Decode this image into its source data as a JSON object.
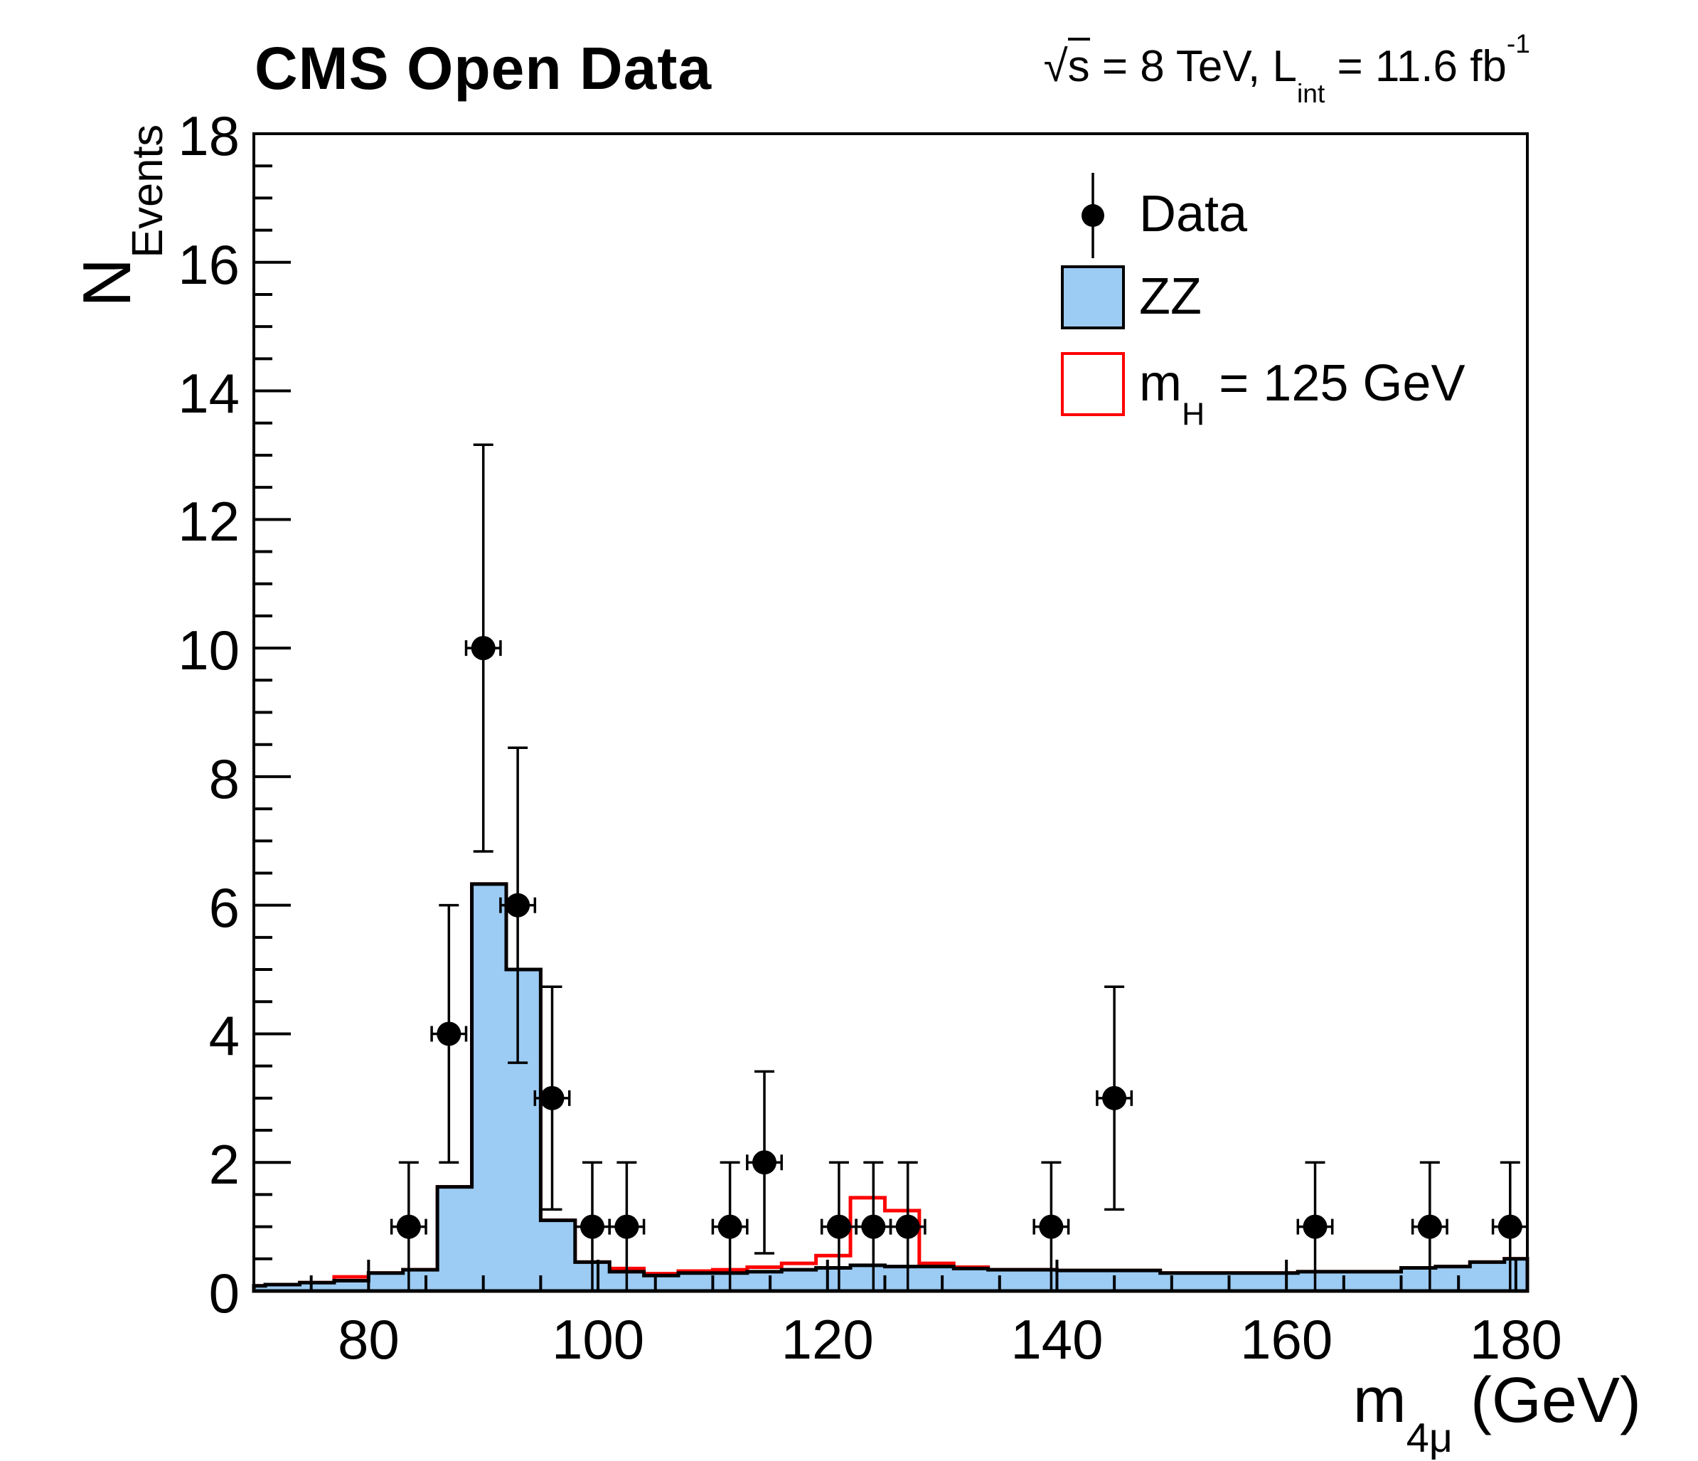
{
  "header": {
    "title": "CMS Open Data",
    "lumi": {
      "sqrt": "√",
      "arg": "s",
      "mid": " = 8 TeV, L",
      "sub": "int",
      "tail": " = 11.6 fb",
      "sup": "-1",
      "full_text": "√s = 8 TeV, L_int = 11.6 fb⁻¹"
    }
  },
  "axes": {
    "y_title": {
      "main": "N",
      "sub": "Events"
    },
    "x_title": {
      "main": "m",
      "sub": "4μ",
      "tail": " (GeV)"
    }
  },
  "legend": {
    "position": "top-right",
    "items": [
      {
        "label": "Data",
        "marker": "data-point-icon",
        "color": "#000000"
      },
      {
        "label": "ZZ",
        "marker": "filled-box-icon",
        "color": "#9CCBF3"
      },
      {
        "label_main": "m",
        "label_sub": "H",
        "label_tail": " = 125 GeV",
        "full_label": "m_H = 125 GeV",
        "marker": "open-box-icon",
        "color": "#FF0000"
      }
    ]
  },
  "chart_data": {
    "type": "bar",
    "subtype": "histogram-with-data-points",
    "title": "CMS Open Data",
    "annotation_right": "√s = 8 TeV, L_int = 11.6 fb⁻¹",
    "xlabel": "m_4μ (GeV)",
    "ylabel": "N_Events",
    "xlim": [
      70,
      181
    ],
    "ylim": [
      0,
      18
    ],
    "grid": false,
    "x_major_ticks": [
      80,
      100,
      120,
      140,
      160,
      180
    ],
    "x_minor_step": 5,
    "y_major_ticks": [
      0,
      2,
      4,
      6,
      8,
      10,
      12,
      14,
      16,
      18
    ],
    "y_minor_step": 0.5,
    "bin_edges": [
      70,
      71,
      74,
      77,
      80,
      83,
      86,
      89,
      92,
      95,
      98,
      101,
      104,
      107,
      110,
      113,
      116,
      119,
      122,
      125,
      128,
      131,
      134,
      137,
      140,
      143,
      146,
      149,
      152,
      155,
      158,
      161,
      164,
      167,
      170,
      173,
      176,
      179,
      181
    ],
    "series": [
      {
        "name": "ZZ",
        "style": "filled",
        "fill_color": "#9CCBF3",
        "line_color": "#000000",
        "values": [
          0.08,
          0.1,
          0.13,
          0.16,
          0.28,
          0.33,
          1.62,
          6.33,
          5.0,
          1.1,
          0.45,
          0.3,
          0.24,
          0.28,
          0.28,
          0.3,
          0.33,
          0.36,
          0.4,
          0.38,
          0.38,
          0.35,
          0.33,
          0.33,
          0.32,
          0.32,
          0.32,
          0.28,
          0.28,
          0.28,
          0.28,
          0.3,
          0.3,
          0.3,
          0.36,
          0.38,
          0.45,
          0.5
        ]
      },
      {
        "name": "mH = 125 GeV",
        "style": "line",
        "line_color": "#FF0000",
        "values": [
          0.08,
          0.1,
          0.13,
          0.22,
          0.28,
          0.33,
          1.62,
          6.33,
          5.0,
          1.1,
          0.45,
          0.35,
          0.27,
          0.31,
          0.33,
          0.37,
          0.43,
          0.55,
          1.45,
          1.25,
          0.43,
          0.37,
          0.33,
          0.33,
          0.32,
          0.32,
          0.32,
          0.28,
          0.28,
          0.28,
          0.28,
          0.3,
          0.3,
          0.3,
          0.36,
          0.38,
          0.45,
          0.5
        ]
      }
    ],
    "data_points": {
      "name": "Data",
      "color": "#000000",
      "x_half_width": 1.5,
      "y_error": "sqrt(N)",
      "points": [
        {
          "x": 83.5,
          "y": 1
        },
        {
          "x": 87,
          "y": 4
        },
        {
          "x": 90,
          "y": 10
        },
        {
          "x": 93,
          "y": 6
        },
        {
          "x": 96,
          "y": 3
        },
        {
          "x": 99.5,
          "y": 1
        },
        {
          "x": 102.5,
          "y": 1
        },
        {
          "x": 111.5,
          "y": 1
        },
        {
          "x": 114.5,
          "y": 2
        },
        {
          "x": 121,
          "y": 1
        },
        {
          "x": 124,
          "y": 1
        },
        {
          "x": 127,
          "y": 1
        },
        {
          "x": 139.5,
          "y": 1
        },
        {
          "x": 145,
          "y": 3
        },
        {
          "x": 162.5,
          "y": 1
        },
        {
          "x": 172.5,
          "y": 1
        },
        {
          "x": 179.5,
          "y": 1
        }
      ]
    },
    "colors": {
      "zz_fill": "#9CCBF3",
      "signal_line": "#FF0000",
      "data_marker": "#000000",
      "frame": "#000000",
      "background": "#FFFFFF"
    }
  }
}
